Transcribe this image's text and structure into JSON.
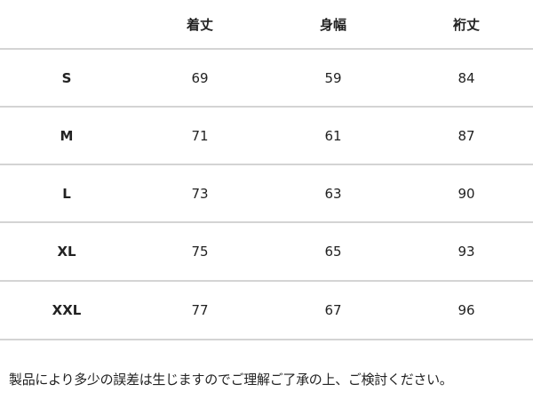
{
  "table": {
    "headers": [
      "",
      "着丈",
      "身幅",
      "裄丈"
    ],
    "rows": [
      {
        "size": "S",
        "values": [
          "69",
          "59",
          "84"
        ]
      },
      {
        "size": "M",
        "values": [
          "71",
          "61",
          "87"
        ]
      },
      {
        "size": "L",
        "values": [
          "73",
          "63",
          "90"
        ]
      },
      {
        "size": "XL",
        "values": [
          "75",
          "65",
          "93"
        ]
      },
      {
        "size": "XXL",
        "values": [
          "77",
          "67",
          "96"
        ]
      }
    ]
  },
  "note": "製品により多少の誤差は生じますのでご理解ご了承の上、ご検討ください。"
}
